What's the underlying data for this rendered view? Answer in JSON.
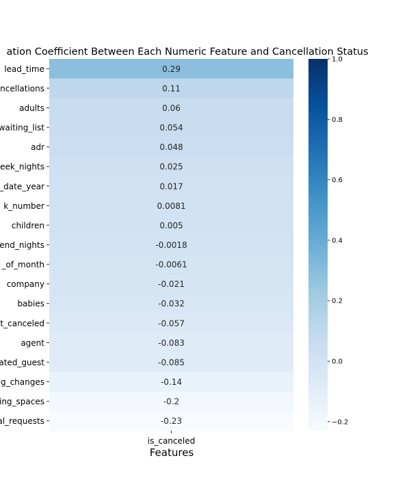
{
  "chart_data": {
    "type": "heatmap",
    "title": "ation Coefficient Between Each Numeric Feature and Cancellation Status",
    "xlabel": "Features",
    "ylabel": "",
    "columns": [
      "is_canceled"
    ],
    "rows": [
      {
        "label": "lead_time",
        "value": 0.29,
        "text": "0.29"
      },
      {
        "label": "ncellations",
        "value": 0.11,
        "text": "0.11"
      },
      {
        "label": "adults",
        "value": 0.06,
        "text": "0.06"
      },
      {
        "label": "waiting_list",
        "value": 0.054,
        "text": "0.054"
      },
      {
        "label": "adr",
        "value": 0.048,
        "text": "0.048"
      },
      {
        "label": "eek_nights",
        "value": 0.025,
        "text": "0.025"
      },
      {
        "label": "_date_year",
        "value": 0.017,
        "text": "0.017"
      },
      {
        "label": "k_number",
        "value": 0.0081,
        "text": "0.0081"
      },
      {
        "label": "children",
        "value": 0.005,
        "text": "0.005"
      },
      {
        "label": "end_nights",
        "value": -0.0018,
        "text": "-0.0018"
      },
      {
        "label": "_of_month",
        "value": -0.0061,
        "text": "-0.0061"
      },
      {
        "label": "company",
        "value": -0.021,
        "text": "-0.021"
      },
      {
        "label": "babies",
        "value": -0.032,
        "text": "-0.032"
      },
      {
        "label": "t_canceled",
        "value": -0.057,
        "text": "-0.057"
      },
      {
        "label": "agent",
        "value": -0.083,
        "text": "-0.083"
      },
      {
        "label": "ated_guest",
        "value": -0.085,
        "text": "-0.085"
      },
      {
        "label": "g_changes",
        "value": -0.14,
        "text": "-0.14"
      },
      {
        "label": "ing_spaces",
        "value": -0.2,
        "text": "-0.2"
      },
      {
        "label": "al_requests",
        "value": -0.23,
        "text": "-0.23"
      }
    ],
    "colorbar": {
      "vmin": -0.23,
      "vmax": 1.0,
      "ticks": [
        1.0,
        0.8,
        0.6,
        0.4,
        0.2,
        0.0,
        -0.2
      ],
      "tick_labels": [
        "1.0",
        "0.8",
        "0.6",
        "0.4",
        "0.2",
        "0.0",
        "−0.2"
      ]
    },
    "colormap": [
      "#f7fbff",
      "#deebf7",
      "#c6dbef",
      "#9ecae1",
      "#6baed6",
      "#4292c6",
      "#2171b5",
      "#08519c",
      "#08306b"
    ],
    "grid": false,
    "legend": "colorbar-right"
  }
}
